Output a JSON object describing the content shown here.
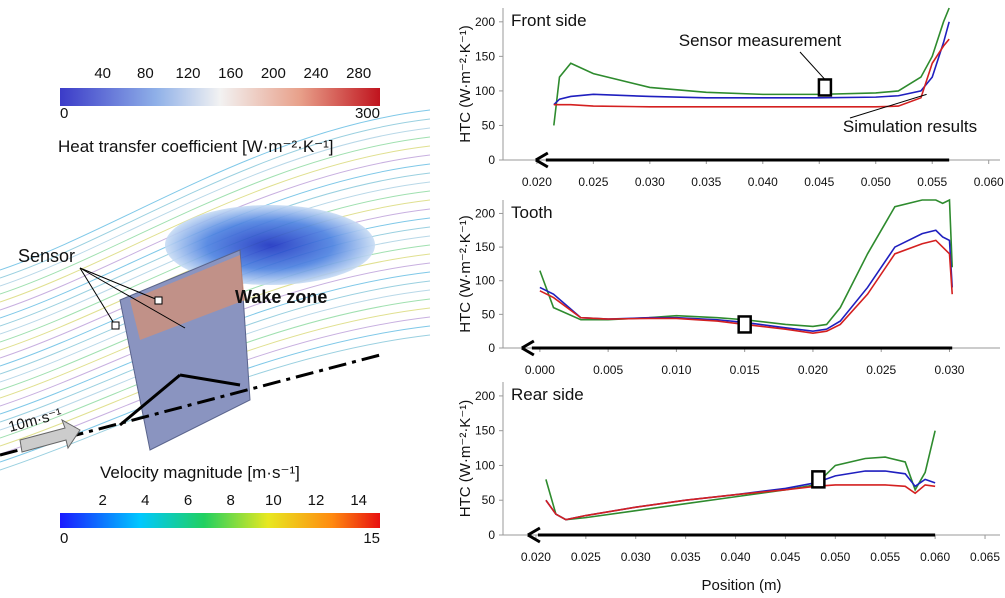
{
  "chart_data": [
    {
      "type": "line",
      "title": "Front side",
      "y_label": "HTC (W·m⁻²·K⁻¹)",
      "x": [
        0.0215,
        0.022,
        0.023,
        0.025,
        0.03,
        0.035,
        0.04,
        0.045,
        0.05,
        0.052,
        0.054,
        0.055,
        0.056,
        0.0565
      ],
      "series": [
        {
          "color": "#2e8b2e",
          "values": [
            50,
            120,
            140,
            125,
            105,
            98,
            95,
            95,
            97,
            100,
            120,
            150,
            200,
            220
          ]
        },
        {
          "color": "#1f1fbf",
          "values": [
            80,
            88,
            92,
            95,
            92,
            90,
            90,
            90,
            91,
            93,
            100,
            120,
            170,
            200
          ]
        },
        {
          "color": "#d42020",
          "values": [
            80,
            80,
            80,
            78,
            77,
            77,
            77,
            77,
            77,
            78,
            90,
            140,
            165,
            175
          ]
        }
      ],
      "sensor": {
        "x": 0.0455,
        "y": 105
      },
      "annotations": [
        "Sensor measurement",
        "Simulation results"
      ],
      "xlim": [
        0.017,
        0.061
      ],
      "ylim": [
        0,
        220
      ],
      "xticks": [
        {
          "value": 0.02,
          "label": "0.020"
        },
        {
          "value": 0.025,
          "label": "0.025"
        },
        {
          "value": 0.03,
          "label": "0.030"
        },
        {
          "value": 0.035,
          "label": "0.035"
        },
        {
          "value": 0.04,
          "label": "0.040"
        },
        {
          "value": 0.045,
          "label": "0.045"
        },
        {
          "value": 0.05,
          "label": "0.050"
        },
        {
          "value": 0.055,
          "label": "0.055"
        },
        {
          "value": 0.06,
          "label": "0.060"
        }
      ],
      "yticks": [
        0,
        50,
        100,
        150,
        200
      ]
    },
    {
      "type": "line",
      "title": "Tooth",
      "y_label": "HTC (W·m⁻²·K⁻¹)",
      "x": [
        0,
        0.001,
        0.003,
        0.005,
        0.008,
        0.01,
        0.013,
        0.015,
        0.018,
        0.02,
        0.021,
        0.022,
        0.024,
        0.026,
        0.028,
        0.029,
        0.0295,
        0.03,
        0.0302
      ],
      "series": [
        {
          "color": "#2e8b2e",
          "values": [
            115,
            60,
            42,
            42,
            45,
            48,
            45,
            42,
            35,
            32,
            35,
            60,
            140,
            210,
            220,
            220,
            215,
            220,
            120
          ]
        },
        {
          "color": "#1f1fbf",
          "values": [
            90,
            80,
            45,
            43,
            45,
            45,
            42,
            38,
            30,
            25,
            28,
            40,
            90,
            150,
            170,
            175,
            165,
            160,
            90
          ]
        },
        {
          "color": "#d42020",
          "values": [
            85,
            75,
            45,
            43,
            44,
            44,
            40,
            35,
            28,
            22,
            25,
            35,
            80,
            140,
            155,
            160,
            150,
            140,
            80
          ]
        }
      ],
      "sensor": {
        "x": 0.015,
        "y": 35
      },
      "xlim": [
        -0.0027,
        0.0337
      ],
      "ylim": [
        0,
        220
      ],
      "xticks": [
        {
          "value": 0,
          "label": "0.000"
        },
        {
          "value": 0.005,
          "label": "0.005"
        },
        {
          "value": 0.01,
          "label": "0.010"
        },
        {
          "value": 0.015,
          "label": "0.015"
        },
        {
          "value": 0.02,
          "label": "0.020"
        },
        {
          "value": 0.025,
          "label": "0.025"
        },
        {
          "value": 0.03,
          "label": "0.030"
        }
      ],
      "yticks": [
        0,
        50,
        100,
        150,
        200
      ]
    },
    {
      "type": "line",
      "title": "Rear side",
      "y_label": "HTC (W·m⁻²·K⁻¹)",
      "x_label": "Position (m)",
      "x": [
        0.021,
        0.022,
        0.023,
        0.025,
        0.03,
        0.035,
        0.04,
        0.045,
        0.048,
        0.05,
        0.053,
        0.055,
        0.057,
        0.058,
        0.059,
        0.06
      ],
      "series": [
        {
          "color": "#2e8b2e",
          "values": [
            80,
            30,
            22,
            25,
            35,
            45,
            55,
            65,
            72,
            100,
            110,
            112,
            105,
            65,
            90,
            150
          ]
        },
        {
          "color": "#1f1fbf",
          "values": [
            50,
            30,
            22,
            28,
            40,
            50,
            58,
            67,
            75,
            85,
            92,
            92,
            88,
            70,
            80,
            75
          ]
        },
        {
          "color": "#d42020",
          "values": [
            50,
            30,
            22,
            28,
            40,
            50,
            58,
            65,
            70,
            72,
            72,
            72,
            70,
            60,
            72,
            70
          ]
        }
      ],
      "sensor": {
        "x": 0.0483,
        "y": 80
      },
      "xlim": [
        0.0167,
        0.0665
      ],
      "ylim": [
        0,
        220
      ],
      "xticks": [
        {
          "value": 0.02,
          "label": "0.020"
        },
        {
          "value": 0.025,
          "label": "0.025"
        },
        {
          "value": 0.03,
          "label": "0.030"
        },
        {
          "value": 0.035,
          "label": "0.035"
        },
        {
          "value": 0.04,
          "label": "0.040"
        },
        {
          "value": 0.045,
          "label": "0.045"
        },
        {
          "value": 0.05,
          "label": "0.050"
        },
        {
          "value": 0.055,
          "label": "0.055"
        },
        {
          "value": 0.06,
          "label": "0.060"
        },
        {
          "value": 0.065,
          "label": "0.065"
        }
      ],
      "yticks": [
        0,
        50,
        100,
        150,
        200
      ]
    }
  ],
  "left_panel": {
    "heat_colorbar": {
      "label": "Heat transfer coefficient [W·m⁻²·K⁻¹]",
      "lim": [
        0,
        300
      ],
      "ticks": [
        40,
        80,
        120,
        160,
        200,
        240,
        280
      ]
    },
    "velocity_colorbar": {
      "label": "Velocity magnitude [m·s⁻¹]",
      "lim": [
        0,
        15
      ],
      "ticks": [
        2,
        4,
        6,
        8,
        10,
        12,
        14
      ]
    },
    "sensor_label": "Sensor",
    "wake_label": "Wake zone",
    "inflow_label": "10m·s⁻¹"
  }
}
